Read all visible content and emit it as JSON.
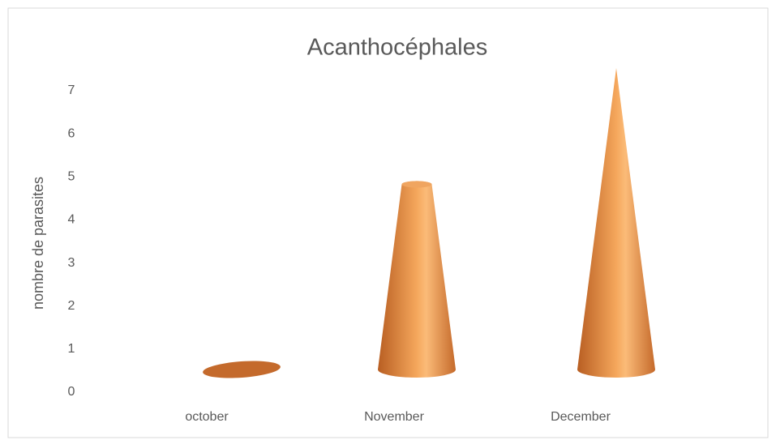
{
  "chart_data": {
    "type": "cone",
    "title": "Acanthocéphales",
    "y_label": "nombre de parasites",
    "categories": [
      "october",
      "November",
      "December"
    ],
    "values": [
      0,
      4.3,
      7
    ],
    "color": "#e8893a",
    "ylim": [
      0,
      7
    ],
    "yticks": [
      0,
      1,
      2,
      3,
      4,
      5,
      6,
      7
    ]
  }
}
